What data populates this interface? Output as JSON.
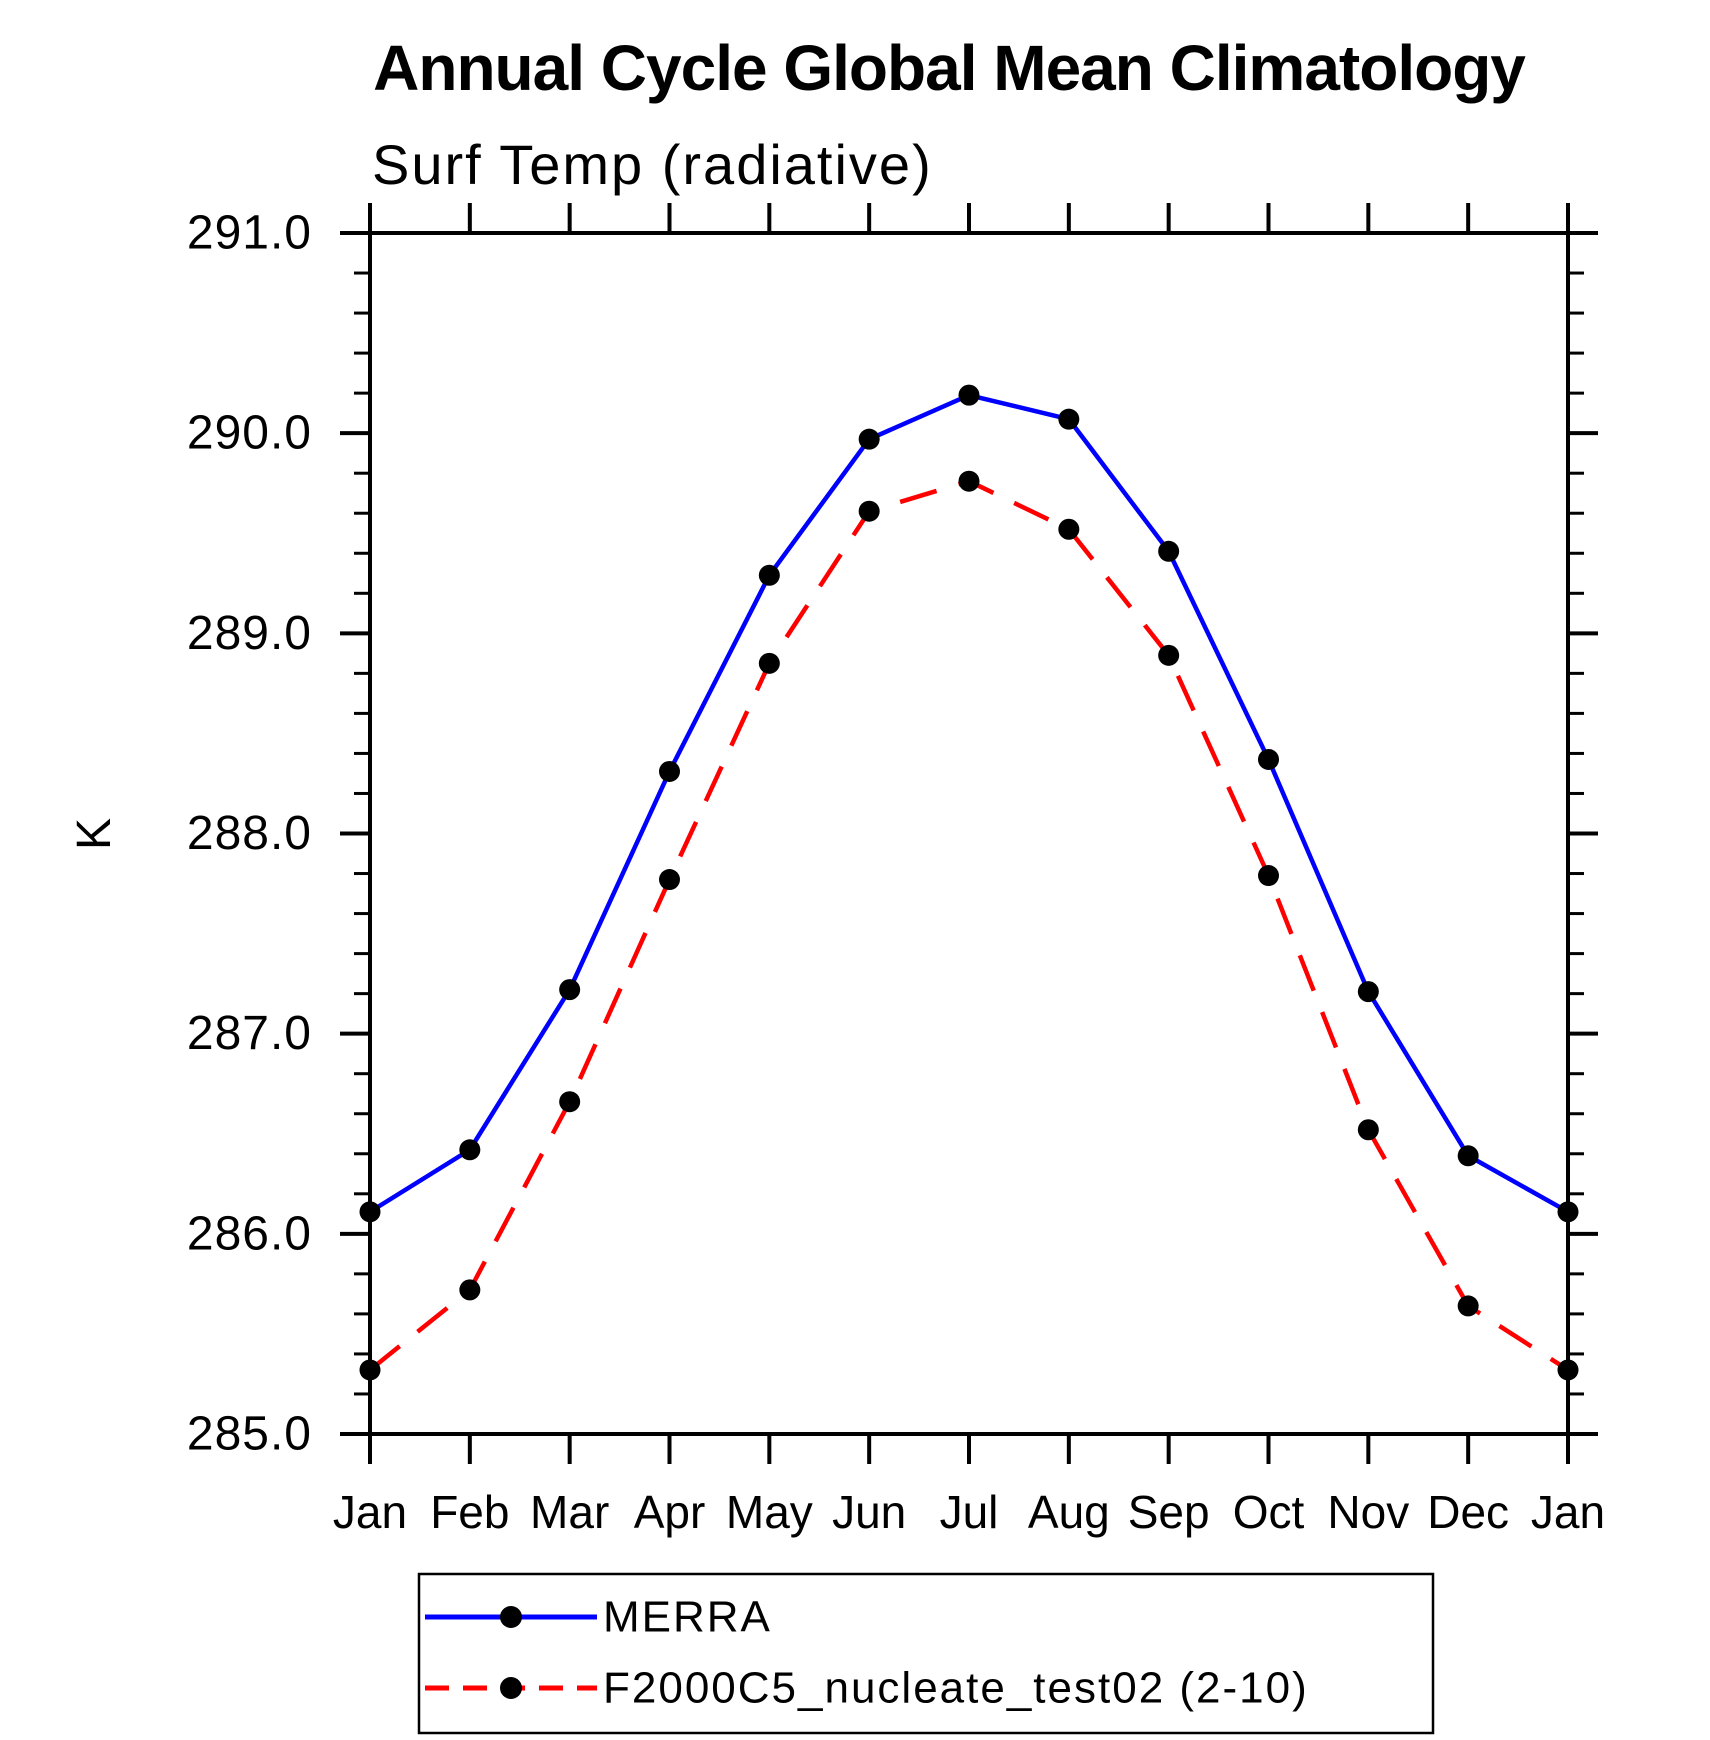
{
  "title": "Annual Cycle Global Mean Climatology",
  "subtitle": "Surf Temp (radiative)",
  "chart_data": {
    "type": "line",
    "categories": [
      "Jan",
      "Feb",
      "Mar",
      "Apr",
      "May",
      "Jun",
      "Jul",
      "Aug",
      "Sep",
      "Oct",
      "Nov",
      "Dec",
      "Jan"
    ],
    "xlabel": "",
    "ylabel": "K",
    "ylim": [
      285.0,
      291.0
    ],
    "ytick_major_step": 1.0,
    "ytick_minor_step": 0.2,
    "ytick_labels": [
      "285.0",
      "286.0",
      "287.0",
      "288.0",
      "289.0",
      "290.0",
      "291.0"
    ],
    "grid": false,
    "legend_position": "bottom",
    "series": [
      {
        "name": "MERRA",
        "color": "#0000ff",
        "line_style": "solid",
        "marker": "circle",
        "marker_color": "#000000",
        "values": [
          286.11,
          286.42,
          287.22,
          288.31,
          289.29,
          289.97,
          290.19,
          290.07,
          289.41,
          288.37,
          287.21,
          286.39,
          286.11
        ]
      },
      {
        "name": "F2000C5_nucleate_test02 (2-10)",
        "color": "#ff0000",
        "line_style": "dashed",
        "marker": "circle",
        "marker_color": "#000000",
        "values": [
          285.32,
          285.72,
          286.66,
          287.77,
          288.85,
          289.61,
          289.76,
          289.52,
          288.89,
          287.79,
          286.52,
          285.64,
          285.32
        ]
      }
    ]
  },
  "colors": {
    "axis": "#000000",
    "background": "#ffffff",
    "series_blue": "#0000ff",
    "series_red": "#ff0000",
    "marker": "#000000"
  }
}
